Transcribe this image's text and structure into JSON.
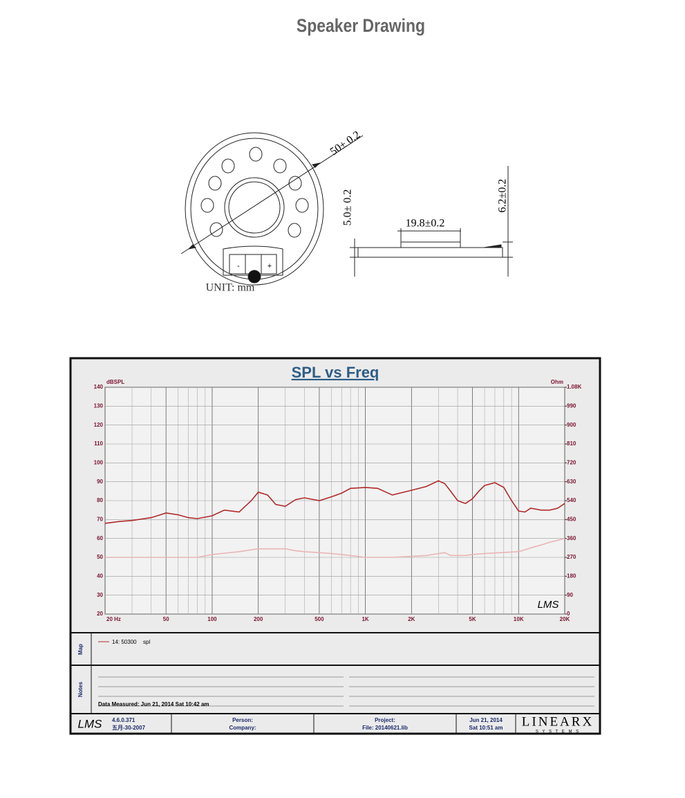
{
  "title": "Speaker Drawing",
  "drawing": {
    "dims": [
      "50± 0.2",
      "5.0± 0.2",
      "19.8±0.2",
      "6.2±0.2"
    ],
    "terminals": [
      "-",
      "+"
    ],
    "unit": "UNIT: mm"
  },
  "chart_data": {
    "type": "line",
    "title": "SPL vs Freq",
    "y_label": "dBSPL",
    "y2_label": "Ohm",
    "watermark": "LMS",
    "x": [
      20,
      25,
      30,
      40,
      50,
      60,
      70,
      80,
      100,
      120,
      150,
      180,
      200,
      230,
      260,
      300,
      350,
      400,
      500,
      600,
      700,
      800,
      1000,
      1200,
      1500,
      2000,
      2500,
      3000,
      3300,
      3600,
      4000,
      4500,
      5000,
      5500,
      6000,
      7000,
      8000,
      9000,
      10000,
      11000,
      12000,
      14000,
      16000,
      18000,
      20000
    ],
    "xlim": [
      20,
      20000
    ],
    "log_x": true,
    "xticks": [
      {
        "value": 20,
        "label": "20  Hz"
      },
      50,
      100,
      200,
      500,
      {
        "value": 1000,
        "label": "1K"
      },
      {
        "value": 2000,
        "label": "2K"
      },
      {
        "value": 5000,
        "label": "5K"
      },
      {
        "value": 10000,
        "label": "10K"
      },
      {
        "value": 20000,
        "label": "20K"
      }
    ],
    "ylim": [
      20,
      140
    ],
    "yticks": [
      20,
      30,
      40,
      50,
      60,
      70,
      80,
      90,
      100,
      110,
      120,
      130,
      140
    ],
    "y2lim": [
      0,
      1080
    ],
    "y2ticks": [
      0,
      90,
      180,
      270,
      360,
      450,
      540,
      630,
      720,
      810,
      900,
      990,
      {
        "value": 1080,
        "label": "1.08K"
      }
    ],
    "grid": true,
    "series": [
      {
        "name": "14: 50300",
        "color": "#b02a2a",
        "values": [
          68,
          69,
          69.5,
          71,
          73.5,
          72.5,
          71,
          70.5,
          72,
          75,
          74,
          80,
          84.5,
          83,
          78,
          77,
          80.5,
          81.5,
          80,
          82,
          84,
          86.5,
          87,
          86.5,
          83,
          85.5,
          87.5,
          90.5,
          89,
          85,
          80,
          78.5,
          81,
          85,
          88,
          89.5,
          87,
          80,
          74.5,
          74,
          76,
          75,
          75,
          76,
          78.5
        ]
      },
      {
        "color": "#e9b4b4",
        "values": [
          50,
          50,
          50,
          50,
          50,
          50,
          50,
          50,
          51.5,
          52.2,
          53,
          54,
          54.5,
          54.5,
          54.5,
          54.5,
          53.5,
          53,
          52.5,
          52,
          51.5,
          51,
          50,
          50,
          50,
          50.5,
          51,
          52,
          52.5,
          51,
          51,
          51,
          51.5,
          51.8,
          52,
          52.3,
          52.6,
          52.8,
          53,
          54,
          55,
          56.5,
          58,
          59,
          60
        ]
      }
    ]
  },
  "legend_unit": "spl",
  "panels": {
    "map_label": "Map",
    "notes_label": "Notes",
    "measured": "Data Measured: Jun 21, 2014  Sat 10:42 am"
  },
  "footer": {
    "logo": "LMS",
    "version": "4.6.0.371",
    "version_date": "五月-30-2007",
    "person": "Person:",
    "company": "Company:",
    "project": "Project:",
    "file": "File: 20140621.lib",
    "date": "Jun 21, 2014",
    "time": "Sat 10:51 am",
    "brand": "LINEARX",
    "brand_sub": "S Y S T E M S"
  }
}
